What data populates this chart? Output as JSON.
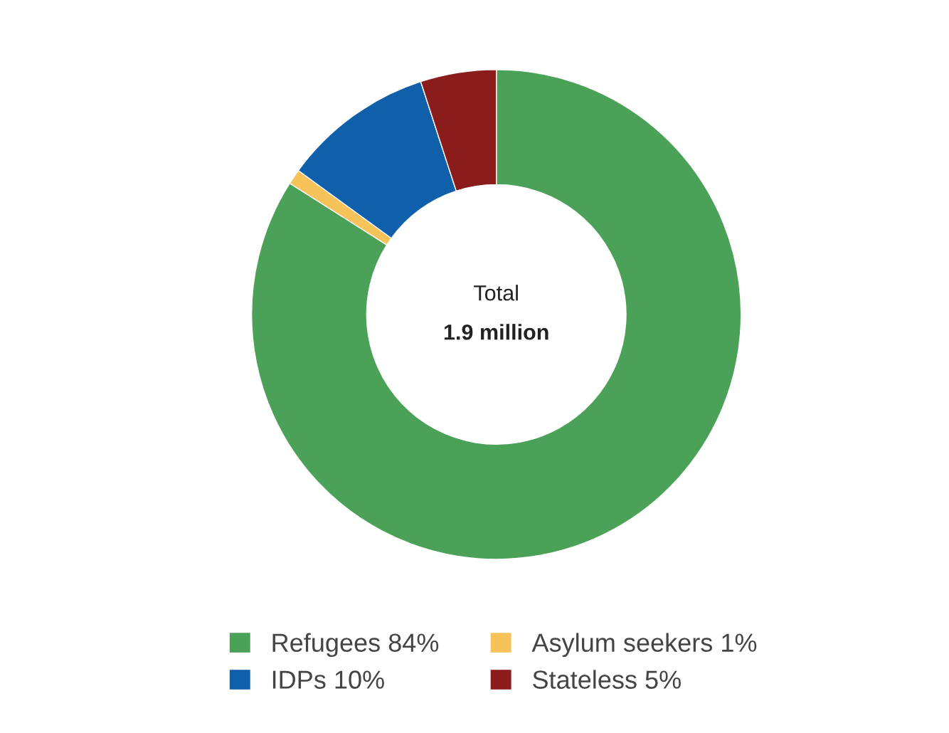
{
  "chart_data": {
    "type": "donut",
    "categories": [
      "Refugees 84%",
      "Asylum seekers 1%",
      "IDPs 10%",
      "Stateless 5%"
    ],
    "values": [
      84,
      1,
      10,
      5
    ],
    "colors": [
      "#4aa157",
      "#f5c35a",
      "#0f5fab",
      "#8b1c1c"
    ],
    "annotations": [
      "Total",
      "1.9 million"
    ],
    "legend": "bottom"
  }
}
